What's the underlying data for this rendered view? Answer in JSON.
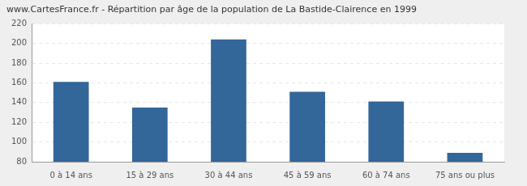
{
  "chart_data": {
    "type": "bar",
    "title": "www.CartesFrance.fr - Répartition par âge de la population de La Bastide-Clairence en 1999",
    "categories": [
      "0 à 14 ans",
      "15 à 29 ans",
      "30 à 44 ans",
      "45 à 59 ans",
      "60 à 74 ans",
      "75 ans ou plus"
    ],
    "values": [
      161,
      135,
      204,
      151,
      141,
      89
    ],
    "color": "#336699",
    "ylim": [
      80,
      220
    ],
    "yticks": [
      80,
      100,
      120,
      140,
      160,
      180,
      200,
      220
    ],
    "grid": true
  }
}
